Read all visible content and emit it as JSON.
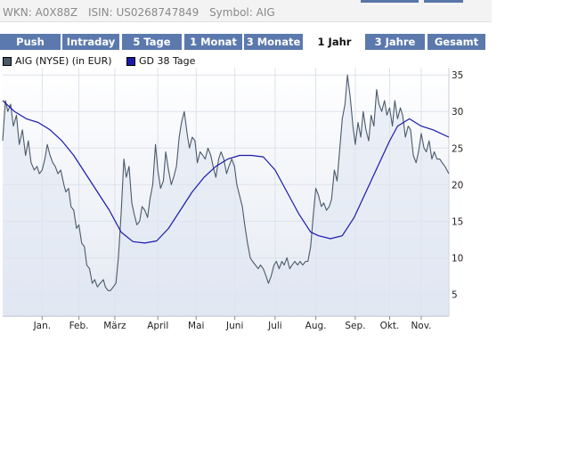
{
  "header": {
    "wkn": "WKN: A0X88Z",
    "isin": "ISIN: US0268747849",
    "symbol": "Symbol: AIG"
  },
  "tabs": [
    {
      "label": "Push",
      "active": false
    },
    {
      "label": "Intraday",
      "active": false
    },
    {
      "label": "5 Tage",
      "active": false
    },
    {
      "label": "1 Monat",
      "active": false
    },
    {
      "label": "3 Monate",
      "active": false
    },
    {
      "label": "1 Jahr",
      "active": true
    },
    {
      "label": "3 Jahre",
      "active": false
    },
    {
      "label": "Gesamt",
      "active": false
    }
  ],
  "legend": [
    {
      "label": "AIG (NYSE) (in EUR)",
      "color": "#4a5a6a"
    },
    {
      "label": "GD 38 Tage",
      "color": "#1a1aaa"
    }
  ],
  "chart_data": {
    "type": "line",
    "title": "",
    "xlabel": "",
    "ylabel": "",
    "x_unit": "months",
    "xlim": [
      0,
      11.3
    ],
    "ylim": [
      2,
      36
    ],
    "yticks": [
      5,
      10,
      15,
      20,
      25,
      30,
      35
    ],
    "xticks": [
      {
        "label": "Jan.",
        "x": 1.0
      },
      {
        "label": "Feb.",
        "x": 1.93
      },
      {
        "label": "März",
        "x": 2.84
      },
      {
        "label": "April",
        "x": 3.93
      },
      {
        "label": "Mai",
        "x": 4.9
      },
      {
        "label": "Juni",
        "x": 5.88
      },
      {
        "label": "Juli",
        "x": 6.9
      },
      {
        "label": "Aug.",
        "x": 7.93
      },
      {
        "label": "Sep.",
        "x": 8.93
      },
      {
        "label": "Okt.",
        "x": 9.8
      },
      {
        "label": "Nov.",
        "x": 10.6
      }
    ],
    "grid": true,
    "series": [
      {
        "name": "AIG (NYSE) (in EUR)",
        "color": "#4a5a6a",
        "x": [
          0.0,
          0.07,
          0.13,
          0.2,
          0.27,
          0.35,
          0.42,
          0.5,
          0.58,
          0.65,
          0.72,
          0.8,
          0.87,
          0.93,
          1.0,
          1.07,
          1.13,
          1.2,
          1.27,
          1.33,
          1.4,
          1.47,
          1.55,
          1.6,
          1.67,
          1.73,
          1.8,
          1.87,
          1.93,
          2.0,
          2.07,
          2.13,
          2.2,
          2.27,
          2.33,
          2.4,
          2.47,
          2.55,
          2.6,
          2.67,
          2.73,
          2.8,
          2.87,
          2.93,
          3.0,
          3.07,
          3.13,
          3.2,
          3.27,
          3.33,
          3.4,
          3.47,
          3.53,
          3.6,
          3.67,
          3.73,
          3.8,
          3.87,
          3.93,
          4.0,
          4.07,
          4.13,
          4.2,
          4.27,
          4.33,
          4.4,
          4.47,
          4.53,
          4.6,
          4.67,
          4.73,
          4.8,
          4.87,
          4.93,
          5.0,
          5.07,
          5.13,
          5.2,
          5.27,
          5.33,
          5.4,
          5.47,
          5.53,
          5.6,
          5.67,
          5.73,
          5.8,
          5.87,
          5.93,
          6.0,
          6.07,
          6.13,
          6.2,
          6.27,
          6.33,
          6.4,
          6.47,
          6.53,
          6.6,
          6.67,
          6.73,
          6.8,
          6.87,
          6.93,
          7.0,
          7.07,
          7.13,
          7.2,
          7.27,
          7.33,
          7.4,
          7.47,
          7.53,
          7.6,
          7.67,
          7.73,
          7.8,
          7.87,
          7.93,
          8.0,
          8.07,
          8.13,
          8.2,
          8.27,
          8.33,
          8.4,
          8.47,
          8.53,
          8.6,
          8.67,
          8.73,
          8.8,
          8.87,
          8.93,
          9.0,
          9.07,
          9.13,
          9.2,
          9.27,
          9.33,
          9.4,
          9.47,
          9.53,
          9.6,
          9.67,
          9.73,
          9.8,
          9.87,
          9.93,
          10.0,
          10.07,
          10.13,
          10.2,
          10.27,
          10.33,
          10.4,
          10.47,
          10.53,
          10.6,
          10.67,
          10.73,
          10.8,
          10.87,
          10.93,
          11.0,
          11.07,
          11.13,
          11.2,
          11.3
        ],
        "y": [
          26.0,
          31.5,
          30.0,
          31.0,
          28.0,
          29.5,
          25.5,
          27.5,
          24.0,
          26.0,
          23.0,
          22.0,
          22.5,
          21.5,
          22.0,
          23.5,
          25.5,
          24.0,
          23.0,
          22.5,
          21.5,
          22.0,
          20.0,
          19.0,
          19.5,
          17.0,
          16.5,
          14.0,
          14.5,
          12.0,
          11.5,
          9.0,
          8.5,
          6.5,
          7.0,
          6.0,
          6.5,
          7.0,
          6.0,
          5.5,
          5.5,
          6.0,
          6.5,
          10.0,
          16.0,
          23.5,
          21.0,
          22.5,
          17.5,
          16.0,
          14.5,
          15.0,
          17.0,
          16.5,
          15.5,
          18.0,
          20.0,
          25.5,
          22.0,
          19.5,
          20.5,
          24.5,
          22.0,
          20.0,
          21.0,
          22.5,
          26.5,
          28.5,
          30.0,
          27.0,
          25.0,
          26.5,
          26.0,
          23.0,
          24.5,
          24.0,
          23.5,
          25.0,
          24.0,
          22.5,
          21.0,
          23.5,
          24.5,
          23.5,
          21.5,
          22.5,
          23.5,
          22.5,
          20.0,
          18.5,
          17.0,
          14.5,
          12.0,
          10.0,
          9.5,
          9.0,
          8.5,
          9.0,
          8.5,
          7.5,
          6.5,
          7.5,
          9.0,
          9.5,
          8.5,
          9.5,
          9.0,
          10.0,
          8.5,
          9.0,
          9.5,
          9.0,
          9.5,
          9.0,
          9.5,
          9.5,
          11.5,
          16.0,
          19.5,
          18.5,
          17.0,
          17.5,
          16.5,
          17.0,
          18.0,
          22.0,
          20.5,
          24.5,
          29.0,
          31.0,
          35.0,
          32.0,
          28.0,
          25.5,
          28.5,
          26.5,
          30.0,
          27.5,
          26.0,
          29.5,
          28.0,
          33.0,
          31.0,
          30.0,
          31.5,
          29.5,
          30.5,
          28.0,
          31.5,
          29.0,
          30.5,
          29.5,
          26.5,
          28.0,
          27.5,
          24.0,
          23.0,
          24.5,
          27.0,
          25.0,
          24.5,
          26.0,
          23.5,
          24.5,
          23.5,
          23.5,
          23.0,
          22.5,
          21.5
        ]
      },
      {
        "name": "GD 38 Tage",
        "color": "#1a1aaa",
        "x": [
          0.0,
          0.3,
          0.6,
          0.9,
          1.2,
          1.5,
          1.8,
          2.1,
          2.4,
          2.7,
          3.0,
          3.3,
          3.6,
          3.9,
          4.2,
          4.5,
          4.8,
          5.1,
          5.4,
          5.7,
          6.0,
          6.3,
          6.6,
          6.9,
          7.2,
          7.5,
          7.8,
          8.0,
          8.3,
          8.6,
          8.9,
          9.2,
          9.5,
          9.8,
          10.0,
          10.3,
          10.6,
          10.9,
          11.3
        ],
        "y": [
          31.5,
          30.0,
          29.0,
          28.5,
          27.5,
          26.0,
          24.0,
          21.5,
          19.0,
          16.5,
          13.5,
          12.2,
          12.0,
          12.3,
          14.0,
          16.5,
          19.0,
          21.0,
          22.5,
          23.5,
          24.0,
          24.0,
          23.8,
          22.0,
          19.0,
          16.0,
          13.5,
          13.0,
          12.6,
          13.0,
          15.5,
          19.0,
          22.5,
          26.0,
          28.0,
          29.0,
          28.0,
          27.5,
          26.5
        ]
      }
    ]
  }
}
